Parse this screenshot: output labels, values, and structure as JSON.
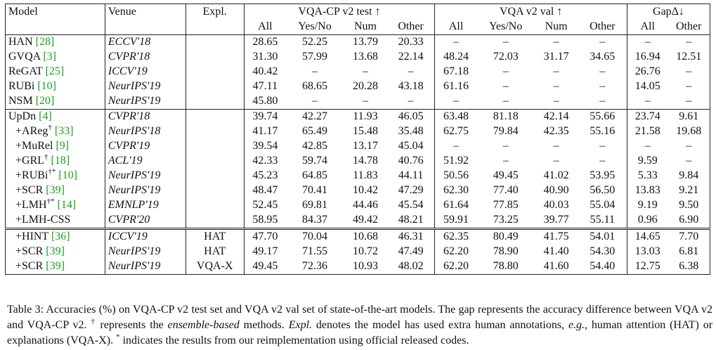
{
  "header": {
    "model": "Model",
    "venue": "Venue",
    "expl": "Expl.",
    "group1": "VQA-CP v2 test ↑",
    "group2": "VQA v2 val ↑",
    "group3": "GapΔ↓",
    "sub1": [
      "All",
      "Yes/No",
      "Num",
      "Other"
    ],
    "sub2": [
      "All",
      "Yes/No",
      "Num",
      "Other"
    ],
    "sub3": [
      "All",
      "Other"
    ]
  },
  "rows_a": [
    {
      "model": "HAN",
      "ref": "[28]",
      "sup": "",
      "indent": false,
      "bold": false,
      "venue": "ECCV'18",
      "expl": "",
      "cp": [
        "28.65",
        "52.25",
        "13.79",
        "20.33"
      ],
      "v2": [
        "–",
        "–",
        "–",
        "–"
      ],
      "gap": [
        "–",
        "–"
      ]
    },
    {
      "model": "GVQA",
      "ref": "[3]",
      "sup": "",
      "indent": false,
      "bold": false,
      "venue": "CVPR'18",
      "expl": "",
      "cp": [
        "31.30",
        "57.99",
        "13.68",
        "22.14"
      ],
      "v2": [
        "48.24",
        "72.03",
        "31.17",
        "34.65"
      ],
      "gap": [
        "16.94",
        "12.51"
      ]
    },
    {
      "model": "ReGAT",
      "ref": "[25]",
      "sup": "",
      "indent": false,
      "bold": false,
      "venue": "ICCV'19",
      "expl": "",
      "cp": [
        "40.42",
        "–",
        "–",
        "–"
      ],
      "v2": [
        "67.18",
        "–",
        "–",
        "–"
      ],
      "gap": [
        "26.76",
        "–"
      ]
    },
    {
      "model": "RUBi",
      "ref": "[10]",
      "sup": "",
      "indent": false,
      "bold": false,
      "venue": "NeurIPS'19",
      "expl": "",
      "cp": [
        "47.11",
        "68.65",
        "20.28",
        "43.18"
      ],
      "v2": [
        "61.16",
        "–",
        "–",
        "–"
      ],
      "gap": [
        "14.05",
        "–"
      ]
    },
    {
      "model": "NSM",
      "ref": "[20]",
      "sup": "",
      "indent": false,
      "bold": false,
      "venue": "NeurIPS'19",
      "expl": "",
      "cp": [
        "45.80",
        "–",
        "–",
        "–"
      ],
      "v2": [
        "–",
        "–",
        "–",
        "–"
      ],
      "gap": [
        "–",
        "–"
      ]
    }
  ],
  "rows_b": [
    {
      "model": "UpDn",
      "ref": "[4]",
      "sup": "",
      "indent": false,
      "bold": false,
      "venue": "CVPR'18",
      "expl": "",
      "cp": [
        "39.74",
        "42.27",
        "11.93",
        "46.05"
      ],
      "v2": [
        "63.48",
        "81.18",
        "42.14",
        "55.66"
      ],
      "gap": [
        "23.74",
        "9.61"
      ]
    },
    {
      "model": "+AReg",
      "ref": "[33]",
      "sup": "†",
      "indent": true,
      "bold": false,
      "venue": "NeurIPS'18",
      "expl": "",
      "cp": [
        "41.17",
        "65.49",
        "15.48",
        "35.48"
      ],
      "v2": [
        "62.75",
        "79.84",
        "42.35",
        "55.16"
      ],
      "gap": [
        "21.58",
        "19.68"
      ]
    },
    {
      "model": "+MuRel",
      "ref": "[9]",
      "sup": "",
      "indent": true,
      "bold": false,
      "venue": "CVPR'19",
      "expl": "",
      "cp": [
        "39.54",
        "42.85",
        "13.17",
        "45.04"
      ],
      "v2": [
        "–",
        "–",
        "–",
        "–"
      ],
      "gap": [
        "–",
        "–"
      ]
    },
    {
      "model": "+GRL",
      "ref": "[18]",
      "sup": "†",
      "indent": true,
      "bold": false,
      "venue": "ACL'19",
      "expl": "",
      "cp": [
        "42.33",
        "59.74",
        "14.78",
        "40.76"
      ],
      "v2": [
        "51.92",
        "–",
        "–",
        "–"
      ],
      "gap": [
        "9.59",
        "–"
      ]
    },
    {
      "model": "+RUBi",
      "ref": "[10]",
      "sup": "†*",
      "indent": true,
      "bold": false,
      "venue": "NeurIPS'19",
      "expl": "",
      "cp": [
        "45.23",
        "64.85",
        "11.83",
        "44.11"
      ],
      "v2": [
        "50.56",
        "49.45",
        "41.02",
        "53.95"
      ],
      "gap": [
        "5.33",
        "9.84"
      ]
    },
    {
      "model": "+SCR",
      "ref": "[39]",
      "sup": "",
      "indent": true,
      "bold": false,
      "venue": "NeurIPS'19",
      "expl": "",
      "cp": [
        "48.47",
        "70.41",
        "10.42",
        "47.29"
      ],
      "v2": [
        "62.30",
        "77.40",
        "40.90",
        "56.50"
      ],
      "gap": [
        "13.83",
        "9.21"
      ]
    },
    {
      "model": "+LMH",
      "ref": "[14]",
      "sup": "†*",
      "indent": true,
      "bold": false,
      "venue": "EMNLP'19",
      "expl": "",
      "cp": [
        "52.45",
        "69.81",
        "44.46",
        "45.54"
      ],
      "v2": [
        "61.64",
        "77.85",
        "40.03",
        "55.04"
      ],
      "gap": [
        "9.19",
        "9.50"
      ]
    },
    {
      "model": "+LMH-CSS",
      "ref": "",
      "sup": "",
      "indent": true,
      "bold": true,
      "venue": "CVPR'20",
      "expl": "",
      "cp": [
        "58.95",
        "84.37",
        "49.42",
        "48.21"
      ],
      "v2": [
        "59.91",
        "73.25",
        "39.77",
        "55.11"
      ],
      "gap": [
        "0.96",
        "6.90"
      ]
    }
  ],
  "rows_c": [
    {
      "model": "+HINT",
      "ref": "[36]",
      "sup": "",
      "indent": true,
      "bold": false,
      "venue": "ICCV'19",
      "expl": "HAT",
      "cp": [
        "47.70",
        "70.04",
        "10.68",
        "46.31"
      ],
      "v2": [
        "62.35",
        "80.49",
        "41.75",
        "54.01"
      ],
      "gap": [
        "14.65",
        "7.70"
      ]
    },
    {
      "model": "+SCR",
      "ref": "[39]",
      "sup": "",
      "indent": true,
      "bold": false,
      "venue": "NeurIPS'19",
      "expl": "HAT",
      "cp": [
        "49.17",
        "71.55",
        "10.72",
        "47.49"
      ],
      "v2": [
        "62.20",
        "78.90",
        "41.40",
        "54.30"
      ],
      "gap": [
        "13.03",
        "6.81"
      ]
    },
    {
      "model": "+SCR",
      "ref": "[39]",
      "sup": "",
      "indent": true,
      "bold": false,
      "venue": "NeurIPS'19",
      "expl": "VQA-X",
      "cp": [
        "49.45",
        "72.36",
        "10.93",
        "48.02"
      ],
      "v2": [
        "62.20",
        "78.80",
        "41.60",
        "54.40"
      ],
      "gap": [
        "12.75",
        "6.38"
      ]
    }
  ],
  "caption": {
    "part1": "Table 3: Accuracies (%) on VQA-CP v2 test set and VQA v2 val set of state-of-the-art models. The gap represents the accuracy difference between VQA v2 and VQA-CP v2. ",
    "dagger": "†",
    "part2": " represents the ",
    "em1": "ensemble-based",
    "part3": " methods. ",
    "em2": "Expl.",
    "part4": " denotes the model has used extra human annotations, ",
    "em3": "e.g.",
    "part5": ", human attention (HAT) or explanations (VQA-X). ",
    "star": "*",
    "part6": " indicates the results from our reimplementation using official released codes."
  }
}
